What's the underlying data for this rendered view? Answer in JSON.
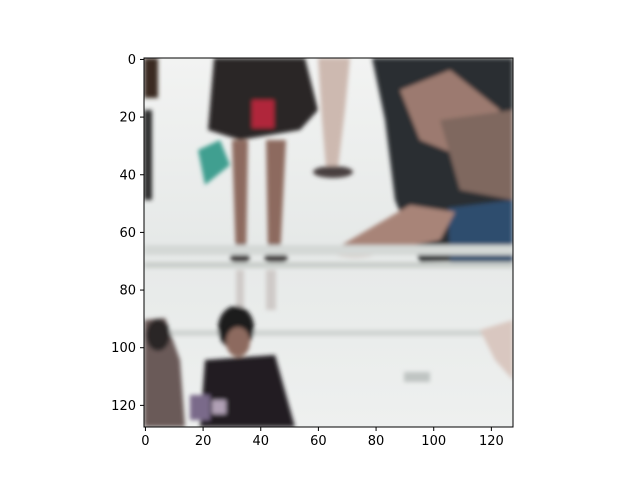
{
  "figure": {
    "image": {
      "description_icon": "blurry-crowd-photo",
      "palette": {
        "floor": "#e9eceb",
        "floor_shadow": "#c9ceca",
        "dark": "#1f1c1f",
        "skin": "#8d6b5f",
        "denim": "#2f4e6e",
        "accent_red": "#b0283b",
        "accent_teal": "#3f9f90"
      }
    },
    "x_axis": {
      "ticks": [
        "0",
        "20",
        "40",
        "60",
        "80",
        "100",
        "120"
      ],
      "tick_values": [
        0,
        20,
        40,
        60,
        80,
        100,
        120
      ],
      "range": [
        -0.5,
        127.5
      ]
    },
    "y_axis": {
      "ticks": [
        "0",
        "20",
        "40",
        "60",
        "80",
        "100",
        "120"
      ],
      "tick_values": [
        0,
        20,
        40,
        60,
        80,
        100,
        120
      ],
      "range": [
        127.5,
        -0.5
      ]
    },
    "frame_color": "#000000"
  }
}
